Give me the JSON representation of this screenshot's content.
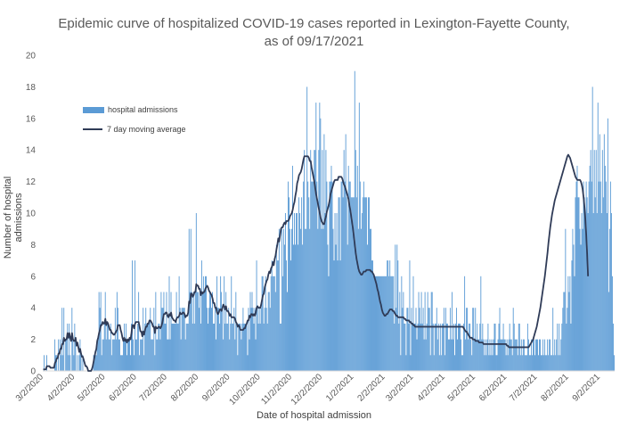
{
  "chart_data": {
    "type": "bar",
    "title_line1": "Epidemic curve of hospitalized COVID-19 cases reported in Lexington-Fayette County,",
    "title_line2": "as of 09/17/2021",
    "xlabel": "Date of hospital admission",
    "ylabel": "Number of hospital admissions",
    "ylim": [
      0,
      20
    ],
    "y_ticks": [
      "0",
      "2",
      "4",
      "6",
      "8",
      "10",
      "12",
      "14",
      "16",
      "18",
      "20"
    ],
    "x_tick_labels": [
      "3/2/2020",
      "4/2/2020",
      "5/2/2020",
      "6/2/2020",
      "7/2/2020",
      "8/2/2020",
      "9/2/2020",
      "10/2/2020",
      "11/2/2020",
      "12/2/2020",
      "1/2/2021",
      "2/2/2021",
      "3/2/2021",
      "4/2/2021",
      "5/2/2021",
      "6/2/2021",
      "7/2/2021",
      "8/2/2021",
      "9/2/2021"
    ],
    "x_start": "3/2/2020",
    "x_end": "9/17/2021",
    "grid": false,
    "legend_position": "upper-left",
    "series": [
      {
        "name": "hospital admissions",
        "kind": "bar",
        "color": "#5b9bd5",
        "values": [
          0,
          1,
          0,
          0,
          1,
          0,
          0,
          0,
          0,
          0,
          0,
          0,
          0,
          2,
          1,
          1,
          0,
          2,
          0,
          2,
          1,
          4,
          1,
          4,
          0,
          2,
          2,
          3,
          1,
          3,
          1,
          0,
          4,
          2,
          1,
          3,
          2,
          0,
          1,
          0,
          1,
          2,
          1,
          0,
          1,
          0,
          0,
          0,
          0,
          0,
          0,
          0,
          0,
          0,
          0,
          0,
          1,
          1,
          1,
          1,
          2,
          2,
          5,
          4,
          5,
          1,
          2,
          2,
          3,
          5,
          2,
          3,
          3,
          2,
          2,
          3,
          1,
          2,
          2,
          2,
          4,
          2,
          5,
          4,
          2,
          2,
          1,
          1,
          1,
          2,
          3,
          2,
          3,
          1,
          2,
          2,
          2,
          1,
          3,
          7,
          2,
          1,
          7,
          2,
          2,
          3,
          5,
          1,
          2,
          2,
          2,
          4,
          1,
          3,
          4,
          3,
          3,
          3,
          3,
          4,
          2,
          2,
          2,
          4,
          1,
          5,
          2,
          2,
          3,
          3,
          2,
          5,
          4,
          4,
          5,
          3,
          3,
          5,
          2,
          2,
          6,
          2,
          5,
          3,
          3,
          3,
          3,
          3,
          5,
          3,
          3,
          6,
          4,
          2,
          4,
          4,
          4,
          4,
          2,
          3,
          3,
          3,
          9,
          5,
          9,
          5,
          3,
          5,
          3,
          5,
          10,
          5,
          5,
          4,
          5,
          3,
          7,
          5,
          6,
          5,
          6,
          6,
          4,
          3,
          4,
          5,
          5,
          4,
          5,
          3,
          3,
          4,
          2,
          6,
          4,
          4,
          3,
          6,
          5,
          4,
          2,
          6,
          3,
          5,
          3,
          3,
          4,
          2,
          3,
          6,
          3,
          3,
          4,
          2,
          5,
          3,
          1,
          3,
          3,
          3,
          2,
          3,
          4,
          3,
          3,
          3,
          3,
          1,
          4,
          2,
          5,
          4,
          5,
          4,
          3,
          4,
          2,
          7,
          4,
          3,
          4,
          3,
          4,
          6,
          6,
          3,
          4,
          6,
          4,
          3,
          5,
          5,
          4,
          6,
          7,
          6,
          6,
          6,
          5,
          8,
          7,
          7,
          9,
          3,
          3,
          9,
          6,
          9,
          8,
          10,
          7,
          5,
          12,
          11,
          9,
          7,
          9,
          13,
          8,
          10,
          8,
          10,
          10,
          8,
          11,
          10,
          9,
          11,
          8,
          12,
          14,
          9,
          9,
          18,
          12,
          11,
          9,
          14,
          12,
          12,
          12,
          14,
          14,
          17,
          12,
          9,
          14,
          17,
          16,
          9,
          14,
          9,
          15,
          10,
          14,
          12,
          8,
          6,
          12,
          12,
          13,
          12,
          9,
          7,
          10,
          8,
          10,
          7,
          11,
          11,
          7,
          12,
          12,
          11,
          14,
          12,
          15,
          11,
          8,
          13,
          12,
          12,
          11,
          11,
          11,
          11,
          19,
          14,
          11,
          13,
          9,
          17,
          12,
          9,
          10,
          11,
          12,
          11,
          11,
          11,
          8,
          11,
          11,
          9,
          9,
          7,
          7,
          6,
          6,
          6,
          6,
          6,
          6,
          6,
          6,
          6,
          6,
          6,
          6,
          6,
          6,
          6,
          7,
          7,
          6,
          7,
          6,
          6,
          6,
          6,
          3,
          8,
          4,
          8,
          7,
          3,
          5,
          1,
          6,
          4,
          5,
          3,
          3,
          1,
          4,
          4,
          3,
          7,
          1,
          4,
          3,
          6,
          3,
          3,
          4,
          2,
          3,
          5,
          4,
          3,
          5,
          3,
          4,
          2,
          5,
          2,
          3,
          5,
          4,
          4,
          1,
          5,
          5,
          3,
          1,
          3,
          3,
          4,
          2,
          3,
          1,
          3,
          1,
          3,
          3,
          4,
          1,
          4,
          3,
          3,
          2,
          2,
          4,
          2,
          5,
          2,
          3,
          1,
          3,
          4,
          2,
          3,
          3,
          3,
          2,
          1,
          1,
          3,
          6,
          2,
          4,
          4,
          2,
          3,
          3,
          2,
          1,
          4,
          4,
          2,
          4,
          2,
          3,
          2,
          2,
          3,
          6,
          2,
          3,
          2,
          1,
          2,
          1,
          2,
          3,
          1,
          2,
          1,
          2,
          1,
          2,
          3,
          3,
          1,
          1,
          2,
          3,
          4,
          2,
          2,
          2,
          3,
          2,
          2,
          1,
          2,
          1,
          2,
          3,
          2,
          2,
          1,
          4,
          3,
          2,
          2,
          2,
          1,
          3,
          3,
          1,
          2,
          1,
          2,
          2,
          1,
          1,
          1,
          3,
          2,
          1,
          1,
          2,
          1,
          2,
          2,
          1,
          2,
          2,
          2,
          1,
          2,
          2,
          1,
          1,
          2,
          1,
          2,
          1,
          1,
          2,
          1,
          2,
          2,
          1,
          1,
          4,
          1,
          2,
          1,
          2,
          3,
          1,
          3,
          1,
          2,
          3,
          4,
          5,
          5,
          9,
          3,
          4,
          6,
          5,
          6,
          3,
          7,
          9,
          8,
          6,
          11,
          12,
          13,
          11,
          11,
          9,
          8,
          10,
          9,
          12,
          11,
          10,
          12,
          11,
          10,
          12,
          13,
          14,
          12,
          18,
          10,
          14,
          11,
          14,
          10,
          17,
          12,
          15,
          12,
          10,
          14,
          11,
          15,
          13,
          12,
          10,
          16,
          5,
          9,
          12,
          10,
          6,
          3,
          1
        ]
      },
      {
        "name": "7 day moving average",
        "kind": "line",
        "color": "#2f3b57",
        "values": [
          0.1,
          0.1,
          0.1,
          0.1,
          0.3,
          0.3,
          0.3,
          0.3,
          0.2,
          0.2,
          0.2,
          0.2,
          0.2,
          0.5,
          0.6,
          0.8,
          0.8,
          1.1,
          1.1,
          1.4,
          1.4,
          1.7,
          1.7,
          2.1,
          1.9,
          2.0,
          2.0,
          2.4,
          2.1,
          2.4,
          2.1,
          1.9,
          2.4,
          2.0,
          1.9,
          1.9,
          2.1,
          1.6,
          1.8,
          1.5,
          1.2,
          1.4,
          1.1,
          0.9,
          0.9,
          0.7,
          0.5,
          0.3,
          0.3,
          0.2,
          0.0,
          0.0,
          0.0,
          0.0,
          0.1,
          0.3,
          0.6,
          0.9,
          1.2,
          1.4,
          1.9,
          2.1,
          2.4,
          2.6,
          2.9,
          2.9,
          3.1,
          3.0,
          3.0,
          3.3,
          2.9,
          3.1,
          3.0,
          2.8,
          2.6,
          2.6,
          2.4,
          2.4,
          2.3,
          2.3,
          2.4,
          2.5,
          2.6,
          2.9,
          2.9,
          2.9,
          2.6,
          2.4,
          2.1,
          1.9,
          2.1,
          1.9,
          2.0,
          1.8,
          2.0,
          1.9,
          2.1,
          2.0,
          2.4,
          2.9,
          2.9,
          2.7,
          3.0,
          3.1,
          3.1,
          3.1,
          3.1,
          2.8,
          2.5,
          2.5,
          2.2,
          2.5,
          2.3,
          2.6,
          2.8,
          2.8,
          3.0,
          3.0,
          3.2,
          3.2,
          3.1,
          3.0,
          2.8,
          2.8,
          2.4,
          2.8,
          2.7,
          2.7,
          2.8,
          2.8,
          2.7,
          2.8,
          3.0,
          3.3,
          3.6,
          3.6,
          3.7,
          3.7,
          3.5,
          3.4,
          3.6,
          3.5,
          3.7,
          3.4,
          3.3,
          3.2,
          3.2,
          3.1,
          3.3,
          3.4,
          3.4,
          3.5,
          3.7,
          3.6,
          3.6,
          3.7,
          3.7,
          3.6,
          3.4,
          3.5,
          3.5,
          3.7,
          4.4,
          4.3,
          4.9,
          4.9,
          4.7,
          4.8,
          5.0,
          5.0,
          5.5,
          5.4,
          5.4,
          5.2,
          5.2,
          4.8,
          5.0,
          4.9,
          5.0,
          5.0,
          5.2,
          5.3,
          5.4,
          5.3,
          5.1,
          5.0,
          4.9,
          4.8,
          4.6,
          4.3,
          4.3,
          4.0,
          4.0,
          3.7,
          3.6,
          3.7,
          3.9,
          3.9,
          3.8,
          4.0,
          4.2,
          4.1,
          3.9,
          4.1,
          3.8,
          3.8,
          3.7,
          3.5,
          3.6,
          3.4,
          3.4,
          3.4,
          3.4,
          3.3,
          3.1,
          3.0,
          2.8,
          2.9,
          2.8,
          2.6,
          2.6,
          2.6,
          2.6,
          2.7,
          2.7,
          2.9,
          3.0,
          3.2,
          3.2,
          3.5,
          3.4,
          3.6,
          3.6,
          3.5,
          3.6,
          3.5,
          3.7,
          4.0,
          4.1,
          4.0,
          4.0,
          4.0,
          4.2,
          4.5,
          4.8,
          4.9,
          5.3,
          5.5,
          5.7,
          5.8,
          6.1,
          6.3,
          6.2,
          6.5,
          6.6,
          6.9,
          6.7,
          7.1,
          7.3,
          7.7,
          8.0,
          8.4,
          8.2,
          8.6,
          9.0,
          9.1,
          9.1,
          9.3,
          9.4,
          9.3,
          9.5,
          9.5,
          9.5,
          9.6,
          9.8,
          9.9,
          10.0,
          10.2,
          10.5,
          10.7,
          11.1,
          11.4,
          11.9,
          12.1,
          12.4,
          12.5,
          12.6,
          12.8,
          13.1,
          13.4,
          13.6,
          13.6,
          13.6,
          13.6,
          13.6,
          13.5,
          13.3,
          13.3,
          12.9,
          12.6,
          12.3,
          12.0,
          11.6,
          11.2,
          10.9,
          10.6,
          10.3,
          10.0,
          9.7,
          9.5,
          9.4,
          9.3,
          9.3,
          9.6,
          9.8,
          10.1,
          10.3,
          10.5,
          10.8,
          11.2,
          11.4,
          11.6,
          11.8,
          12.0,
          12.1,
          12.1,
          12.1,
          12.1,
          12.3,
          12.3,
          12.3,
          12.3,
          12.2,
          12.0,
          11.8,
          11.7,
          11.5,
          11.3,
          11.1,
          10.9,
          10.5,
          10.2,
          9.8,
          9.4,
          9.0,
          8.5,
          8.0,
          7.5,
          7.1,
          6.8,
          6.5,
          6.3,
          6.2,
          6.1,
          6.1,
          6.2,
          6.3,
          6.3,
          6.3,
          6.4,
          6.4,
          6.4,
          6.4,
          6.4,
          6.3,
          6.3,
          6.2,
          6.1,
          5.9,
          5.7,
          5.5,
          5.2,
          5.0,
          4.7,
          4.4,
          4.2,
          3.9,
          3.7,
          3.6,
          3.5,
          3.5,
          3.6,
          3.6,
          3.7,
          3.8,
          3.9,
          3.9,
          3.9,
          3.8,
          3.8,
          3.7,
          3.6,
          3.5,
          3.5,
          3.4,
          3.4,
          3.4,
          3.4,
          3.4,
          3.4,
          3.4,
          3.3,
          3.3,
          3.2,
          3.2,
          3.2,
          3.2,
          3.1,
          3.1,
          3.0,
          3.0,
          2.9,
          2.9,
          2.8,
          2.8,
          2.8,
          2.8,
          2.8,
          2.8,
          2.8,
          2.8,
          2.8,
          2.8,
          2.8,
          2.8,
          2.8,
          2.8,
          2.8,
          2.8,
          2.8,
          2.8,
          2.8,
          2.8,
          2.8,
          2.8,
          2.8,
          2.8,
          2.8,
          2.8,
          2.8,
          2.8,
          2.8,
          2.8,
          2.8,
          2.8,
          2.8,
          2.8,
          2.8,
          2.8,
          2.8,
          2.8,
          2.8,
          2.8,
          2.8,
          2.8,
          2.8,
          2.8,
          2.8,
          2.8,
          2.8,
          2.8,
          2.8,
          2.8,
          2.8,
          2.8,
          2.8,
          2.8,
          2.7,
          2.6,
          2.5,
          2.5,
          2.4,
          2.3,
          2.2,
          2.1,
          2.1,
          2.1,
          2.0,
          2.0,
          2.0,
          1.9,
          1.9,
          1.9,
          1.9,
          1.8,
          1.8,
          1.8,
          1.8,
          1.8,
          1.7,
          1.7,
          1.7,
          1.7,
          1.7,
          1.7,
          1.7,
          1.7,
          1.7,
          1.7,
          1.7,
          1.7,
          1.7,
          1.7,
          1.7,
          1.7,
          1.7,
          1.7,
          1.7,
          1.7,
          1.7,
          1.7,
          1.7,
          1.7,
          1.7,
          1.7,
          1.6,
          1.6,
          1.5,
          1.5,
          1.5,
          1.5,
          1.5,
          1.5,
          1.5,
          1.5,
          1.5,
          1.5,
          1.5,
          1.5,
          1.5,
          1.5,
          1.5,
          1.5,
          1.5,
          1.5,
          1.5,
          1.5,
          1.5,
          1.5,
          1.5,
          1.6,
          1.7,
          1.8,
          1.9,
          2.0,
          2.2,
          2.4,
          2.6,
          2.8,
          3.1,
          3.4,
          3.7,
          4.0,
          4.4,
          4.8,
          5.2,
          5.6,
          6.0,
          6.5,
          7.0,
          7.5,
          8.1,
          8.6,
          9.1,
          9.5,
          9.9,
          10.2,
          10.5,
          10.8,
          11.0,
          11.2,
          11.4,
          11.6,
          11.8,
          12.0,
          12.2,
          12.4,
          12.6,
          12.8,
          13.0,
          13.2,
          13.4,
          13.6,
          13.7,
          13.6,
          13.5,
          13.3,
          13.1,
          12.9,
          12.7,
          12.5,
          12.3,
          12.2,
          12.1,
          12.1,
          12.1,
          12.1,
          12.0,
          11.8,
          11.5,
          11.0,
          10.4,
          9.6,
          8.6,
          7.4,
          6.0
        ]
      }
    ]
  }
}
